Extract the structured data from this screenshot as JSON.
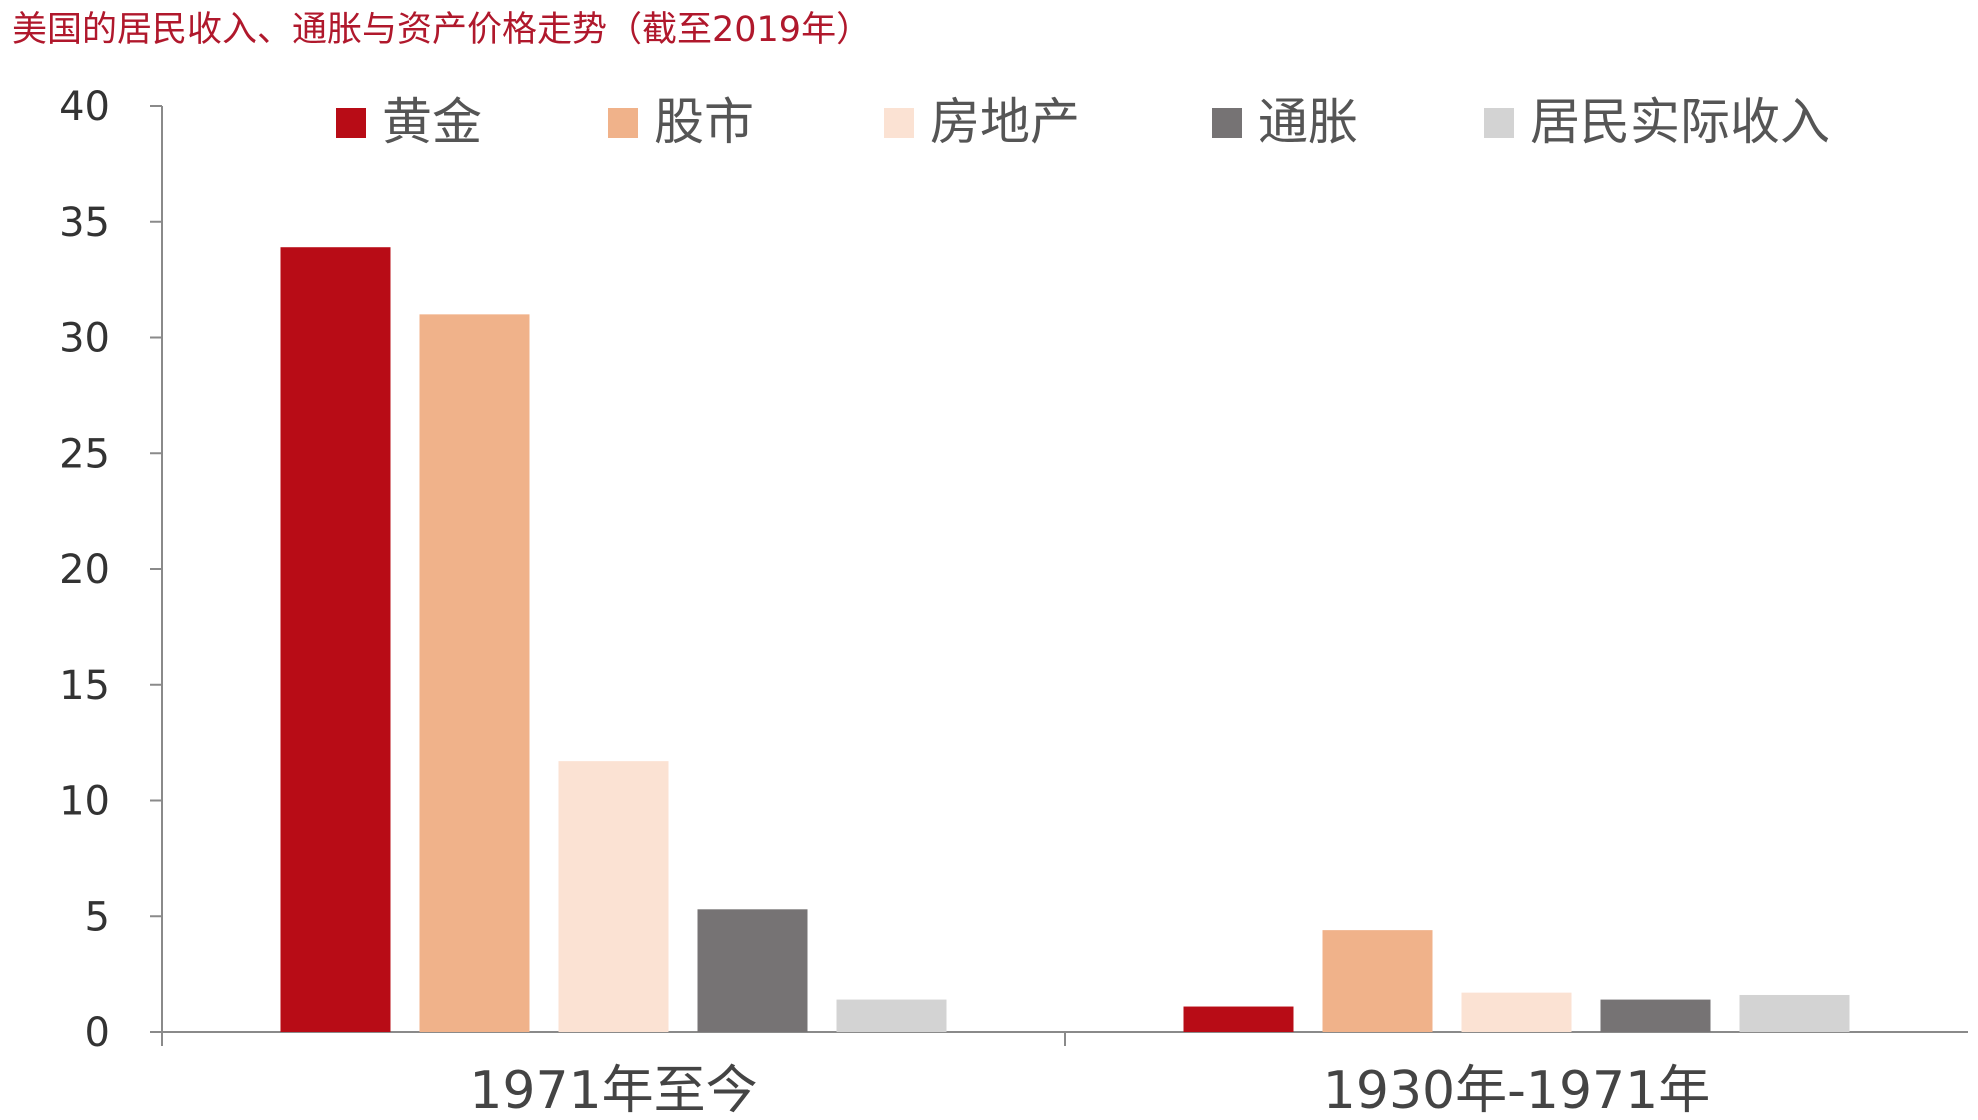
{
  "chart_data": {
    "type": "bar",
    "title": "美国的居民收入、通胀与资产价格走势（截至2019年）",
    "xlabel": "",
    "ylabel": "",
    "ylim": [
      0,
      40
    ],
    "yticks": [
      0,
      5,
      10,
      15,
      20,
      25,
      30,
      35,
      40
    ],
    "grid": false,
    "legend_position": "top",
    "categories": [
      "1971年至今",
      "1930年-1971年"
    ],
    "series": [
      {
        "name": "黄金",
        "color": "#b80c16",
        "values": [
          33.9,
          1.1
        ]
      },
      {
        "name": "股市",
        "color": "#f0b28a",
        "values": [
          31.0,
          4.4
        ]
      },
      {
        "name": "房地产",
        "color": "#fbe2d3",
        "values": [
          11.7,
          1.7
        ]
      },
      {
        "name": "通胀",
        "color": "#767374",
        "values": [
          5.3,
          1.4
        ]
      },
      {
        "name": "居民实际收入",
        "color": "#d3d3d3",
        "values": [
          1.4,
          1.6
        ]
      }
    ]
  }
}
